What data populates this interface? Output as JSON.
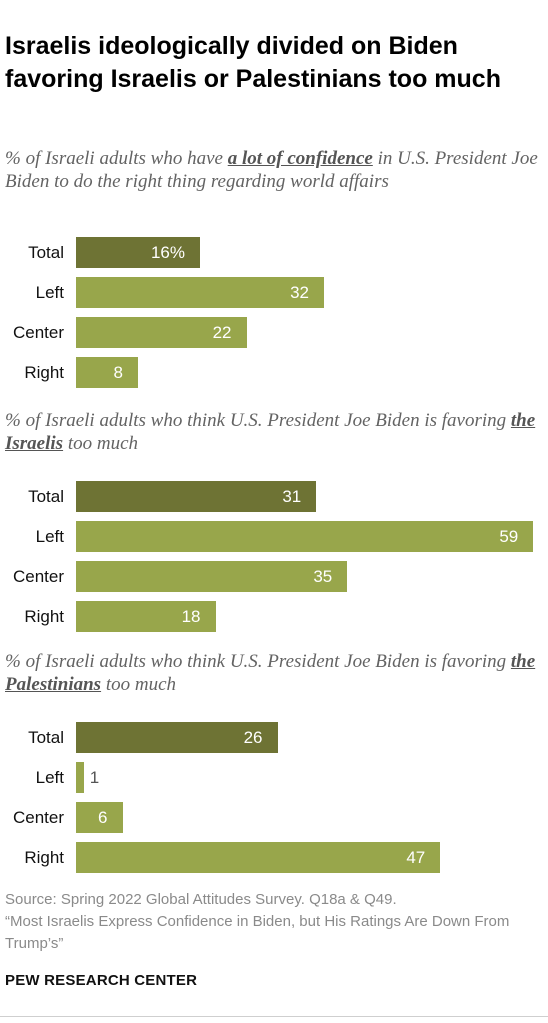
{
  "title": "Israelis ideologically divided on Biden favoring Israelis or Palestinians too much",
  "colors": {
    "total_bar": "#6e7334",
    "group_bar": "#98a64b",
    "outside_label": "#555555"
  },
  "chart_data": [
    {
      "type": "bar",
      "orientation": "horizontal",
      "subtitle_pre": "% of Israeli adults who have ",
      "subtitle_em": "a lot of confidence",
      "subtitle_post": " in U.S. President Joe Biden to do the right thing regarding world affairs",
      "categories": [
        "Total",
        "Left",
        "Center",
        "Right"
      ],
      "values": [
        16,
        32,
        22,
        8
      ],
      "labels": [
        "16%",
        "32",
        "22",
        "8"
      ]
    },
    {
      "type": "bar",
      "orientation": "horizontal",
      "subtitle_pre": "% of Israeli adults who think U.S. President Joe Biden is favoring ",
      "subtitle_em": "the Israelis",
      "subtitle_post": " too much",
      "categories": [
        "Total",
        "Left",
        "Center",
        "Right"
      ],
      "values": [
        31,
        59,
        35,
        18
      ],
      "labels": [
        "31",
        "59",
        "35",
        "18"
      ]
    },
    {
      "type": "bar",
      "orientation": "horizontal",
      "subtitle_pre": "% of Israeli adults who think U.S. President Joe Biden is favoring ",
      "subtitle_em": "the Palestinians",
      "subtitle_post": " too much",
      "categories": [
        "Total",
        "Left",
        "Center",
        "Right"
      ],
      "values": [
        26,
        1,
        6,
        47
      ],
      "labels": [
        "26",
        "1",
        "6",
        "47"
      ]
    }
  ],
  "source": {
    "line1": "Source: Spring 2022 Global Attitudes Survey. Q18a & Q49.",
    "line2": "“Most Israelis Express Confidence in Biden, but His Ratings Are Down From Trump’s”"
  },
  "org": "PEW RESEARCH CENTER"
}
